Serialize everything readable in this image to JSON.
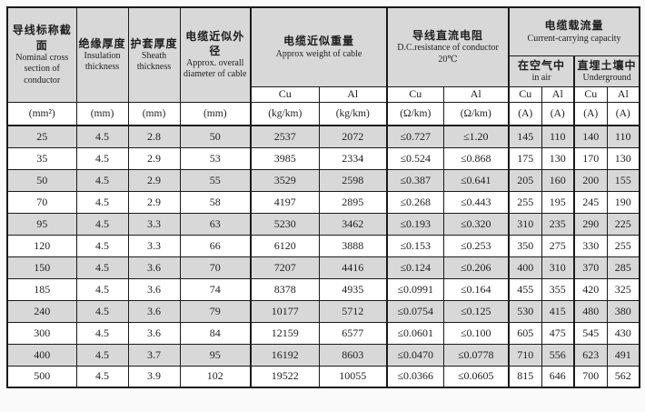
{
  "labels": {
    "cu": "Cu",
    "al": "Al"
  },
  "table": {
    "header": {
      "nominal": {
        "zh": "导线标称截面",
        "en": "Nominal cross section of conductor"
      },
      "insulation": {
        "zh": "绝缘厚度",
        "en": "Insulation thickness"
      },
      "sheath": {
        "zh": "护套厚度",
        "en": "Sheath thickness"
      },
      "diameter": {
        "zh": "电缆近似外径",
        "en": "Approx. overall diameter of cable"
      },
      "weight": {
        "zh": "电缆近似重量",
        "en": "Approx weight of cable"
      },
      "resistance": {
        "zh": "导线直流电阻",
        "en": "D.C.resistance of conductor",
        "temp": "20℃"
      },
      "capacity": {
        "zh": "电缆载流量",
        "en": "Current-carrying capacity"
      },
      "air": {
        "zh": "在空气中",
        "en": "in air"
      },
      "underground": {
        "zh": "直埋土壤中",
        "en": "Underground"
      }
    },
    "units": [
      "(mm²)",
      "(mm)",
      "(mm)",
      "(mm)",
      "(kg/km)",
      "(kg/km)",
      "(Ω/km)",
      "(Ω/km)",
      "(A)",
      "(A)",
      "(A)",
      "(A)"
    ],
    "rows": [
      [
        "25",
        "4.5",
        "2.8",
        "50",
        "2537",
        "2072",
        "≤0.727",
        "≤1.20",
        "145",
        "110",
        "140",
        "110"
      ],
      [
        "35",
        "4.5",
        "2.9",
        "53",
        "3985",
        "2334",
        "≤0.524",
        "≤0.868",
        "175",
        "130",
        "170",
        "130"
      ],
      [
        "50",
        "4.5",
        "2.9",
        "55",
        "3529",
        "2598",
        "≤0.387",
        "≤0.641",
        "205",
        "160",
        "200",
        "155"
      ],
      [
        "70",
        "4.5",
        "2.9",
        "58",
        "4197",
        "2895",
        "≤0.268",
        "≤0.443",
        "255",
        "195",
        "245",
        "190"
      ],
      [
        "95",
        "4.5",
        "3.3",
        "63",
        "5230",
        "3462",
        "≤0.193",
        "≤0.320",
        "310",
        "235",
        "290",
        "225"
      ],
      [
        "120",
        "4.5",
        "3.3",
        "66",
        "6120",
        "3888",
        "≤0.153",
        "≤0.253",
        "350",
        "275",
        "330",
        "255"
      ],
      [
        "150",
        "4.5",
        "3.6",
        "70",
        "7207",
        "4416",
        "≤0.124",
        "≤0.206",
        "400",
        "310",
        "370",
        "285"
      ],
      [
        "185",
        "4.5",
        "3.6",
        "74",
        "8378",
        "4935",
        "≤0.0991",
        "≤0.164",
        "455",
        "355",
        "420",
        "325"
      ],
      [
        "240",
        "4.5",
        "3.6",
        "79",
        "10177",
        "5712",
        "≤0.0754",
        "≤0.125",
        "530",
        "415",
        "480",
        "380"
      ],
      [
        "300",
        "4.5",
        "3.6",
        "84",
        "12159",
        "6577",
        "≤0.0601",
        "≤0.100",
        "605",
        "475",
        "545",
        "430"
      ],
      [
        "400",
        "4.5",
        "3.7",
        "95",
        "16192",
        "8603",
        "≤0.0470",
        "≤0.0778",
        "710",
        "556",
        "623",
        "491"
      ],
      [
        "500",
        "4.5",
        "3.9",
        "102",
        "19522",
        "10055",
        "≤0.0366",
        "≤0.0605",
        "815",
        "646",
        "700",
        "562"
      ]
    ]
  },
  "colors": {
    "border": "#1a1a1a",
    "header_bg": "#d8d8d8",
    "stripe_bg": "#d8d8d8",
    "row_bg": "#ffffff",
    "page_bg": "#fafafa"
  }
}
